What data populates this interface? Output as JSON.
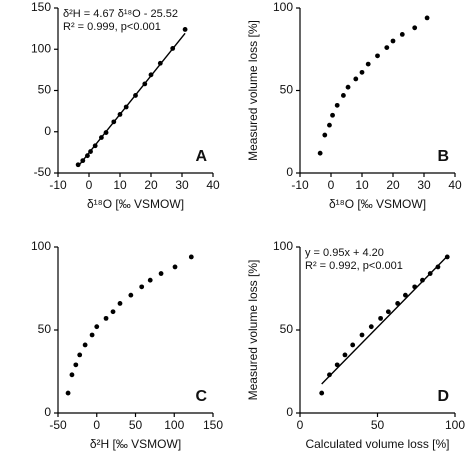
{
  "chart_data": [
    {
      "type": "scatter",
      "panel_label": "A",
      "x_label": "δ¹⁸O [‰ VSMOW]",
      "annotations": [
        "δ²H = 4.67 δ¹⁸O - 25.52",
        "R² = 0.999, p<0.001"
      ],
      "fit": {
        "slope": 4.67,
        "intercept": -25.52
      },
      "color": "#000000",
      "x": [
        -3.5,
        -2,
        -0.5,
        0.5,
        2,
        4,
        5.5,
        8,
        10,
        12,
        15,
        18,
        20,
        23,
        27,
        31
      ],
      "values": [
        -40,
        -35,
        -29,
        -24,
        -17,
        -7,
        -1,
        12,
        21,
        30,
        44,
        58,
        69,
        83,
        101,
        124
      ],
      "xlim": [
        -10,
        40
      ],
      "xticks": [
        -10,
        0,
        10,
        20,
        30,
        40
      ],
      "ylim": [
        -50,
        150
      ],
      "yticks": [
        -50,
        0,
        50,
        100,
        150
      ]
    },
    {
      "type": "scatter",
      "panel_label": "B",
      "x_label": "δ¹⁸O [‰ VSMOW]",
      "y_label": "Measured volume loss [%]",
      "color": "#000000",
      "x": [
        -3.5,
        -2,
        -0.5,
        0.5,
        2,
        4,
        5.5,
        8,
        10,
        12,
        15,
        18,
        20,
        23,
        27,
        31
      ],
      "values": [
        12,
        23,
        29,
        35,
        41,
        47,
        52,
        57,
        61,
        66,
        71,
        76,
        80,
        84,
        88,
        94
      ],
      "xlim": [
        -10,
        40
      ],
      "xticks": [
        -10,
        0,
        10,
        20,
        30,
        40
      ],
      "ylim": [
        0,
        100
      ],
      "yticks": [
        0,
        50,
        100
      ]
    },
    {
      "type": "scatter",
      "panel_label": "C",
      "x_label": "δ²H [‰ VSMOW]",
      "color": "#000000",
      "x": [
        -37,
        -32,
        -27,
        -22,
        -15,
        -6,
        0,
        12,
        21,
        30,
        44,
        58,
        69,
        83,
        101,
        122
      ],
      "values": [
        12,
        23,
        29,
        35,
        41,
        47,
        52,
        57,
        61,
        66,
        71,
        76,
        80,
        84,
        88,
        94
      ],
      "xlim": [
        -50,
        150
      ],
      "xticks": [
        -50,
        0,
        50,
        100,
        150
      ],
      "ylim": [
        0,
        100
      ],
      "yticks": [
        0,
        50,
        100
      ]
    },
    {
      "type": "scatter",
      "panel_label": "D",
      "x_label": "Calculated volume loss [%]",
      "y_label": "Measured volume loss [%]",
      "annotations": [
        "y = 0.95x + 4.20",
        "R² = 0.992, p<0.001"
      ],
      "fit": {
        "slope": 0.95,
        "intercept": 4.2
      },
      "color": "#000000",
      "x": [
        14,
        19,
        24,
        29,
        34,
        40,
        46,
        52,
        57,
        63,
        68,
        74,
        79,
        84,
        89,
        95
      ],
      "values": [
        12,
        23,
        29,
        35,
        41,
        47,
        52,
        57,
        61,
        66,
        71,
        76,
        80,
        84,
        88,
        94
      ],
      "xlim": [
        0,
        100
      ],
      "xticks": [
        0,
        50,
        100
      ],
      "ylim": [
        0,
        100
      ],
      "yticks": [
        0,
        50,
        100
      ]
    }
  ]
}
